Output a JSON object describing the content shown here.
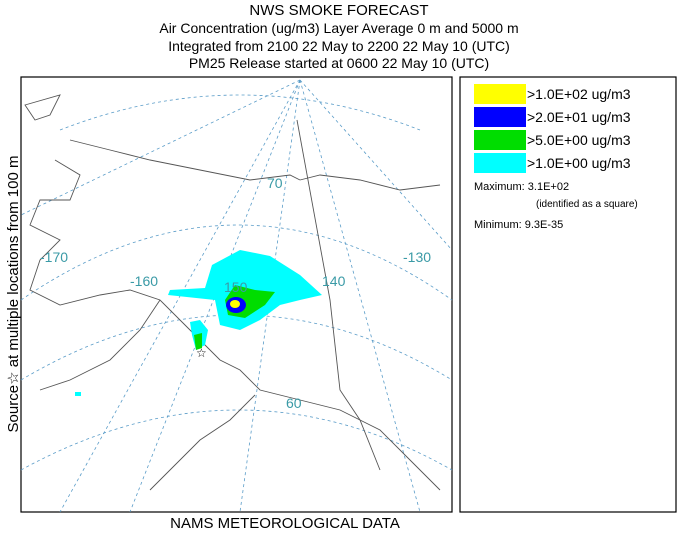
{
  "header": {
    "lines": [
      "NWS SMOKE FORECAST",
      "Air Concentration (ug/m3) Layer Average    0 m and  5000 m",
      "Integrated from 2100 22 May to 2200 22 May 10 (UTC)",
      "PM25 Release started at 0600 22 May 10 (UTC)"
    ]
  },
  "side_label": "Source☆ at multiple locations from   100 m",
  "footer": "NAMS METEOROLOGICAL DATA",
  "map": {
    "labels": [
      "-170",
      "-160",
      "150",
      "140",
      "-130",
      "70",
      "60"
    ]
  },
  "legend": {
    "items": [
      {
        "label": ">1.0E+02 ug/m3",
        "color": "#ffff00"
      },
      {
        "label": ">2.0E+01 ug/m3",
        "color": "#0000ff"
      },
      {
        "label": ">5.0E+00 ug/m3",
        "color": "#00dd00"
      },
      {
        "label": ">1.0E+00 ug/m3",
        "color": "#00ffff"
      }
    ]
  },
  "stats": {
    "maximum": "Maximum: 3.1E+02",
    "maximum_note": "(identified as a square)",
    "minimum": "Minimum: 9.3E-35"
  }
}
